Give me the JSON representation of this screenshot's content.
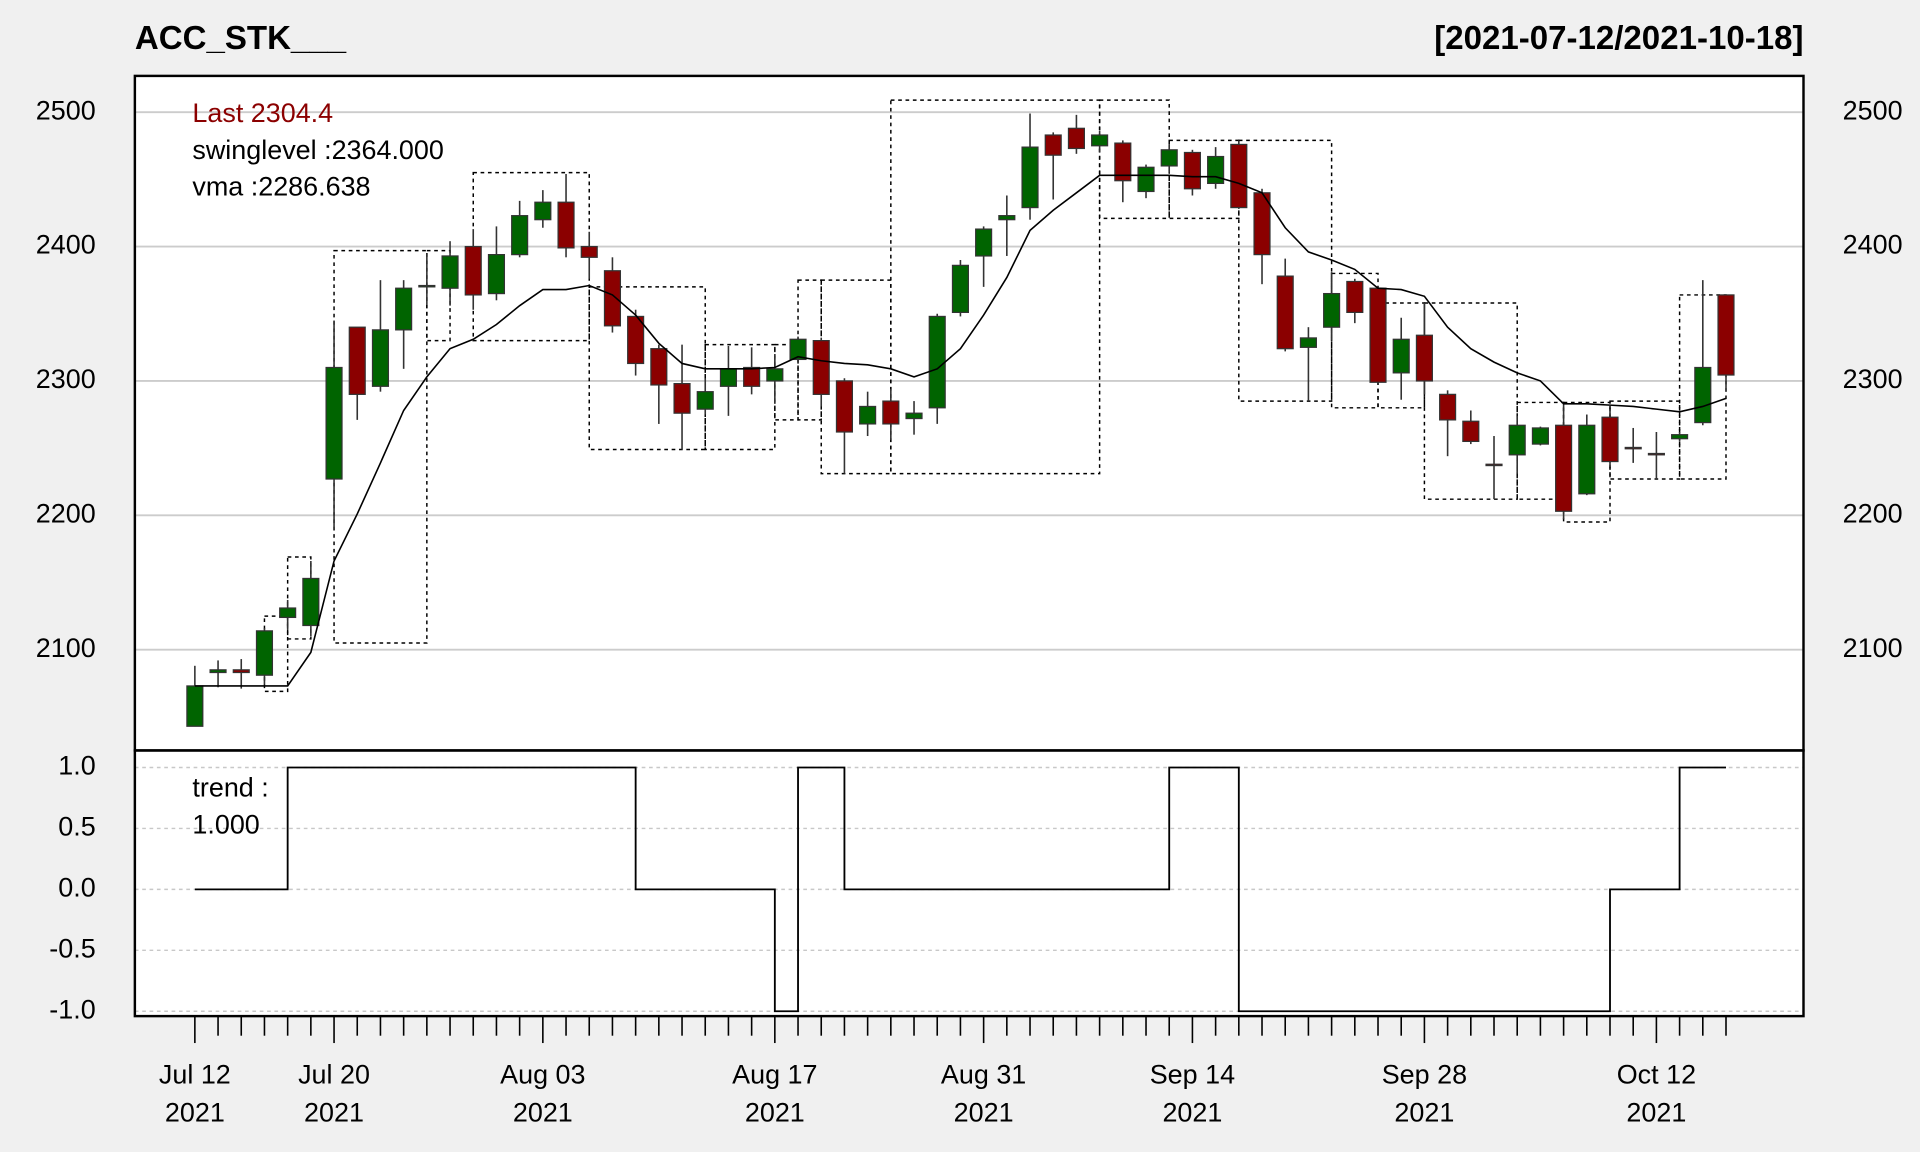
{
  "chart_data": [
    {
      "type": "candlestick",
      "title": "ACC_STK___",
      "subtitle": "[2021-07-12/2021-10-18]",
      "categories": [
        "Jul 12\n2021",
        null,
        null,
        null,
        null,
        null,
        "Jul 20\n2021",
        null,
        null,
        null,
        null,
        null,
        null,
        null,
        null,
        "Aug 03\n2021",
        null,
        null,
        null,
        null,
        null,
        null,
        null,
        null,
        null,
        "Aug 17\n2021",
        null,
        null,
        null,
        null,
        null,
        null,
        null,
        null,
        "Aug 31\n2021",
        null,
        null,
        null,
        null,
        null,
        null,
        null,
        null,
        "Sep 14\n2021",
        null,
        null,
        null,
        null,
        null,
        null,
        null,
        null,
        null,
        "Sep 28\n2021",
        null,
        null,
        null,
        null,
        null,
        null,
        null,
        null,
        null,
        "Oct 12\n2021",
        null,
        null,
        null
      ],
      "open": [
        2043,
        2083,
        2085,
        2081,
        2124,
        2118,
        2227,
        2340,
        2296,
        2338,
        2370,
        2369,
        2400,
        2365,
        2394,
        2420,
        2433,
        2400,
        2382,
        2348,
        2324,
        2298,
        2279,
        2296,
        2310,
        2300,
        2316,
        2330,
        2300,
        2268,
        2285,
        2272,
        2280,
        2351,
        2393,
        2420,
        2429,
        2483,
        2488,
        2475,
        2477,
        2441,
        2460,
        2470,
        2447,
        2476,
        2440,
        2378,
        2325,
        2340,
        2374,
        2369,
        2306,
        2334,
        2290,
        2270,
        2238,
        2245,
        2253,
        2267,
        2216,
        2273,
        2250.5,
        2246,
        2257,
        2269,
        2364
      ],
      "high": [
        2088,
        2092,
        2093,
        2116,
        2137,
        2166,
        2345,
        2340,
        2375,
        2375,
        2395,
        2404,
        2413,
        2415,
        2434,
        2442,
        2454,
        2411,
        2392,
        2353,
        2327,
        2327,
        2302,
        2326,
        2325,
        2320,
        2333,
        2332,
        2302,
        2292,
        2294,
        2285,
        2350,
        2390,
        2415,
        2438,
        2499,
        2485,
        2498,
        2486,
        2479,
        2461,
        2476,
        2472,
        2474,
        2479,
        2443,
        2391,
        2340,
        2381,
        2376,
        2370,
        2347,
        2358,
        2293,
        2278,
        2259,
        2274,
        2266,
        2283,
        2275,
        2279,
        2265,
        2262,
        2262,
        2375,
        2364
      ],
      "low": [
        2043,
        2072,
        2071,
        2074,
        2115,
        2110,
        2190,
        2271,
        2292,
        2309,
        2357,
        2356,
        2353,
        2360,
        2392,
        2414,
        2392,
        2376,
        2336,
        2304,
        2268,
        2249,
        2275,
        2274,
        2290,
        2283,
        2314,
        2281,
        2231,
        2259,
        2256,
        2260,
        2268,
        2348,
        2370,
        2393,
        2420,
        2435,
        2469,
        2470,
        2433,
        2436,
        2455,
        2438,
        2443,
        2428,
        2372,
        2322,
        2285,
        2330,
        2343,
        2297,
        2286,
        2290,
        2244,
        2253,
        2212,
        2231,
        2252,
        2197,
        2215,
        2236,
        2239,
        2227,
        2255,
        2267,
        2292
      ],
      "close": [
        2073,
        2085,
        2083,
        2114,
        2131,
        2153,
        2310,
        2290,
        2338,
        2369,
        2371,
        2393,
        2364,
        2394,
        2423,
        2433,
        2399,
        2392,
        2341,
        2313,
        2297,
        2276,
        2292,
        2309,
        2296,
        2309,
        2331,
        2290,
        2262,
        2281,
        2268,
        2276,
        2348,
        2386,
        2413,
        2423,
        2474,
        2468,
        2473,
        2483,
        2449,
        2459,
        2472,
        2443,
        2467,
        2429,
        2394,
        2324,
        2332,
        2365,
        2351,
        2299,
        2331,
        2300,
        2271,
        2255,
        2237,
        2267,
        2265,
        2203,
        2267,
        2240,
        2249.5,
        2245,
        2260,
        2310,
        2304.4
      ],
      "up_color": "#006400",
      "down_color": "#8b0000",
      "vma": {
        "color": "#000000",
        "values": [
          2073,
          2073,
          2073,
          2073,
          2073,
          2098,
          2166,
          2201,
          2239,
          2278,
          2303,
          2324,
          2331,
          2342,
          2356,
          2368,
          2368,
          2371,
          2364,
          2349,
          2328,
          2313,
          2309,
          2309,
          2309,
          2310,
          2318,
          2315,
          2313,
          2312,
          2309,
          2303,
          2309,
          2324,
          2349,
          2377,
          2412,
          2427,
          2440,
          2453,
          2453,
          2453,
          2453,
          2452,
          2452,
          2447,
          2440,
          2414,
          2396,
          2390,
          2383,
          2369,
          2368,
          2363,
          2340,
          2324,
          2314,
          2306,
          2300,
          2283,
          2283,
          2282,
          2281,
          2279,
          2277,
          2281,
          2287
        ]
      },
      "swing_boxes": [
        {
          "from": 3,
          "to": 4,
          "high": 2125,
          "low": 2069
        },
        {
          "from": 4,
          "to": 5,
          "high": 2169,
          "low": 2108
        },
        {
          "from": 6,
          "to": 10,
          "high": 2397,
          "low": 2105
        },
        {
          "from": 10,
          "to": 11,
          "high": 2397,
          "low": 2330
        },
        {
          "from": 12,
          "to": 17,
          "high": 2455,
          "low": 2330
        },
        {
          "from": 17,
          "to": 22,
          "high": 2370,
          "low": 2249
        },
        {
          "from": 22,
          "to": 25,
          "high": 2327,
          "low": 2249
        },
        {
          "from": 25,
          "to": 26,
          "high": 2327,
          "low": 2271
        },
        {
          "from": 26,
          "to": 27,
          "high": 2375,
          "low": 2271
        },
        {
          "from": 27,
          "to": 30,
          "high": 2375,
          "low": 2231
        },
        {
          "from": 30,
          "to": 39,
          "high": 2509,
          "low": 2231
        },
        {
          "from": 39,
          "to": 42,
          "high": 2509,
          "low": 2421
        },
        {
          "from": 42,
          "to": 45,
          "high": 2479,
          "low": 2421
        },
        {
          "from": 45,
          "to": 49,
          "high": 2479,
          "low": 2285
        },
        {
          "from": 49,
          "to": 51,
          "high": 2380,
          "low": 2280
        },
        {
          "from": 51,
          "to": 53,
          "high": 2358,
          "low": 2280
        },
        {
          "from": 53,
          "to": 57,
          "high": 2358,
          "low": 2212
        },
        {
          "from": 57,
          "to": 59,
          "high": 2284,
          "low": 2212
        },
        {
          "from": 59,
          "to": 61,
          "high": 2284,
          "low": 2195
        },
        {
          "from": 61,
          "to": 64,
          "high": 2285,
          "low": 2227
        },
        {
          "from": 64,
          "to": 66,
          "high": 2364,
          "low": 2227
        }
      ],
      "legend": [
        {
          "text": "Last 2304.4",
          "color": "#8b0000"
        },
        {
          "text": "swinglevel :2364.000",
          "color": "#000000"
        },
        {
          "text": "vma :2286.638",
          "color": "#000000"
        }
      ],
      "ylim": [
        2025,
        2527
      ],
      "yticks": [
        2100,
        2200,
        2300,
        2400,
        2500
      ],
      "grid": true
    },
    {
      "type": "step",
      "legend": [
        "trend :",
        "1.000"
      ],
      "color": "#000000",
      "values": [
        0,
        0,
        0,
        0,
        1,
        1,
        1,
        1,
        1,
        1,
        1,
        1,
        1,
        1,
        1,
        1,
        1,
        1,
        1,
        0,
        0,
        0,
        0,
        0,
        0,
        -1,
        1,
        1,
        0,
        0,
        0,
        0,
        0,
        0,
        0,
        0,
        0,
        0,
        0,
        0,
        0,
        0,
        1,
        1,
        1,
        -1,
        -1,
        -1,
        -1,
        -1,
        -1,
        -1,
        -1,
        -1,
        -1,
        -1,
        -1,
        -1,
        -1,
        -1,
        -1,
        0,
        0,
        0,
        1,
        1,
        1
      ],
      "ylim": [
        -1.04,
        1.14
      ],
      "yticks": [
        {
          "value": 1,
          "label": "1.0"
        },
        {
          "value": 0.5,
          "label": "0.5"
        },
        {
          "value": 0,
          "label": "0.0"
        },
        {
          "value": -0.5,
          "label": "-0.5"
        },
        {
          "value": -1,
          "label": "-1.0"
        }
      ],
      "grid": true
    }
  ]
}
